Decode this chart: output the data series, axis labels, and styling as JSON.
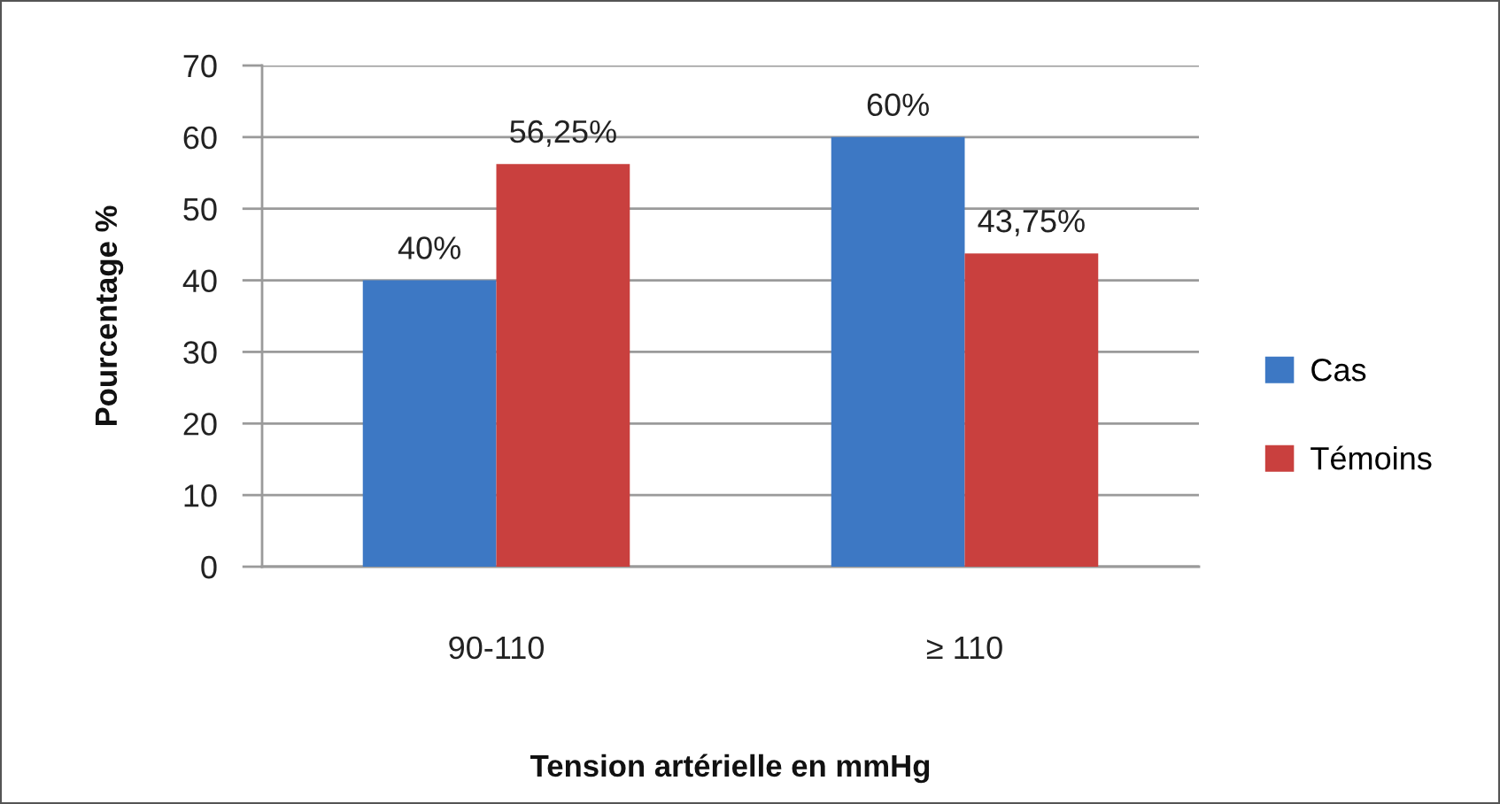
{
  "chart_data": {
    "type": "bar",
    "xlabel": "Tension artérielle en mmHg",
    "ylabel": "Pourcentage %",
    "categories": [
      "90-110",
      "≥ 110"
    ],
    "series": [
      {
        "name": "Cas",
        "color": "#3d78c4",
        "values": [
          40,
          60
        ],
        "value_labels": [
          "40%",
          "60%"
        ]
      },
      {
        "name": "Témoins",
        "color": "#c9403e",
        "values": [
          56.25,
          43.75
        ],
        "value_labels": [
          "56,25%",
          "43,75%"
        ]
      }
    ],
    "ylim": [
      0,
      70
    ],
    "yticks": [
      0,
      10,
      20,
      30,
      40,
      50,
      60,
      70
    ],
    "grid": "y",
    "legend": "right"
  }
}
